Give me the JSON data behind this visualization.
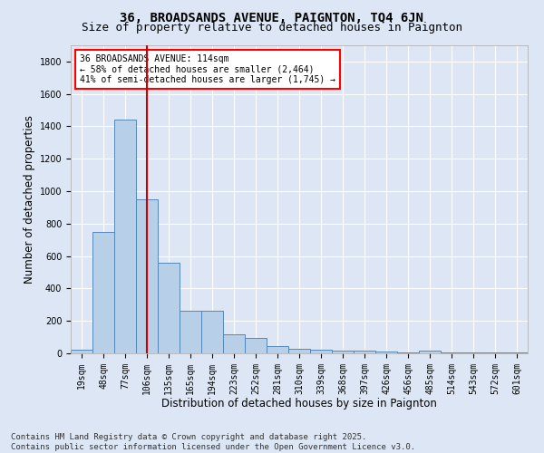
{
  "title": "36, BROADSANDS AVENUE, PAIGNTON, TQ4 6JN",
  "subtitle": "Size of property relative to detached houses in Paignton",
  "xlabel": "Distribution of detached houses by size in Paignton",
  "ylabel": "Number of detached properties",
  "categories": [
    "19sqm",
    "48sqm",
    "77sqm",
    "106sqm",
    "135sqm",
    "165sqm",
    "194sqm",
    "223sqm",
    "252sqm",
    "281sqm",
    "310sqm",
    "339sqm",
    "368sqm",
    "397sqm",
    "426sqm",
    "456sqm",
    "485sqm",
    "514sqm",
    "543sqm",
    "572sqm",
    "601sqm"
  ],
  "bar_heights": [
    25,
    750,
    1440,
    950,
    560,
    265,
    265,
    115,
    95,
    42,
    30,
    20,
    18,
    15,
    10,
    8,
    15,
    5,
    5,
    5,
    5
  ],
  "bar_color": "#b8cfe8",
  "bar_edge_color": "#5588bb",
  "vline_color": "#cc0000",
  "vline_pos": 3.0,
  "annotation_text": "36 BROADSANDS AVENUE: 114sqm\n← 58% of detached houses are smaller (2,464)\n41% of semi-detached houses are larger (1,745) →",
  "annotation_box_facecolor": "white",
  "annotation_box_edgecolor": "red",
  "footer": "Contains HM Land Registry data © Crown copyright and database right 2025.\nContains public sector information licensed under the Open Government Licence v3.0.",
  "ylim": [
    0,
    1900
  ],
  "yticks": [
    0,
    200,
    400,
    600,
    800,
    1000,
    1200,
    1400,
    1600,
    1800
  ],
  "bg_color": "#dce6f5",
  "plot_bg_color": "#dce6f5",
  "title_fontsize": 10,
  "subtitle_fontsize": 9,
  "axis_label_fontsize": 8.5,
  "tick_fontsize": 7,
  "annot_fontsize": 7,
  "footer_fontsize": 6.5
}
